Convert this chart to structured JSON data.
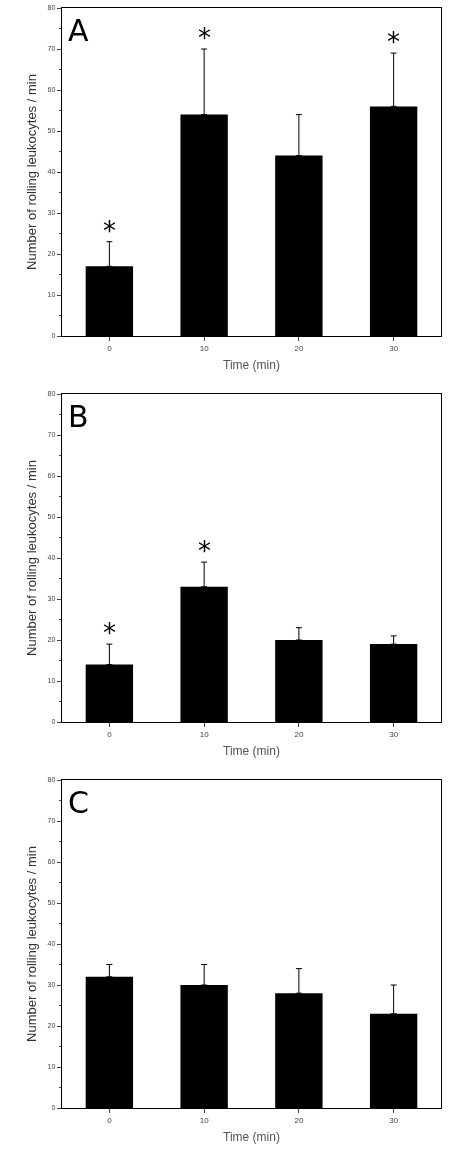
{
  "chart_data": [
    {
      "type": "bar",
      "title": "A",
      "xlabel": "Time (min)",
      "ylabel": "Number of rolling leukocytes / min",
      "categories": [
        "0",
        "10",
        "20",
        "30"
      ],
      "values": [
        17,
        54,
        44,
        56
      ],
      "errors": [
        [
          17,
          23
        ],
        [
          54,
          70
        ],
        [
          44,
          54
        ],
        [
          56,
          69
        ]
      ],
      "color": "#000000",
      "ylim": [
        0,
        80
      ],
      "yticks": [
        0,
        10,
        20,
        30,
        40,
        50,
        60,
        70,
        80
      ],
      "grid": false,
      "annotations": [
        {
          "text": "*",
          "x": "0",
          "y": 23
        },
        {
          "text": "*",
          "x": "10",
          "y": 70
        },
        {
          "text": "*",
          "x": "30",
          "y": 69
        }
      ]
    },
    {
      "type": "bar",
      "title": "B",
      "xlabel": "Time (min)",
      "ylabel": "Number of rolling leukocytes / min",
      "categories": [
        "0",
        "10",
        "20",
        "30"
      ],
      "values": [
        14,
        33,
        20,
        19
      ],
      "errors": [
        [
          14,
          19
        ],
        [
          33,
          39
        ],
        [
          20,
          23
        ],
        [
          19,
          21
        ]
      ],
      "color": "#000000",
      "ylim": [
        0,
        80
      ],
      "yticks": [
        0,
        10,
        20,
        30,
        40,
        50,
        60,
        70,
        80
      ],
      "grid": false,
      "annotations": [
        {
          "text": "*",
          "x": "0",
          "y": 19
        },
        {
          "text": "*",
          "x": "10",
          "y": 39
        }
      ]
    },
    {
      "type": "bar",
      "title": "C",
      "xlabel": "Time (min)",
      "ylabel": "Number of rolling leukocytes / min",
      "categories": [
        "0",
        "10",
        "20",
        "30"
      ],
      "values": [
        32,
        30,
        28,
        23
      ],
      "errors": [
        [
          32,
          35
        ],
        [
          30,
          35
        ],
        [
          28,
          34
        ],
        [
          23,
          30
        ]
      ],
      "color": "#000000",
      "ylim": [
        0,
        80
      ],
      "yticks": [
        0,
        10,
        20,
        30,
        40,
        50,
        60,
        70,
        80
      ],
      "grid": false
    }
  ]
}
